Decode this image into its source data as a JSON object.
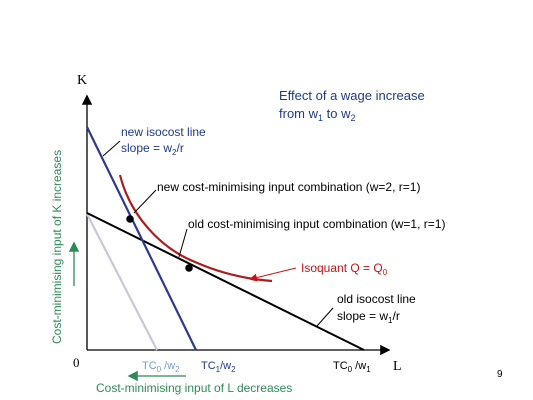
{
  "slide": {
    "title_line1": "Effect of a wage increase",
    "title_line2_prefix": "from w",
    "title_line2_sub1": "1",
    "title_line2_mid": " to w",
    "title_line2_sub2": "2",
    "page_number": "9"
  },
  "axes": {
    "y_label": "K",
    "x_label": "L",
    "origin_label": "0"
  },
  "labels": {
    "new_isocost_line1": "new isocost line",
    "new_isocost_line2_prefix": "slope = w",
    "new_isocost_line2_sub": "2",
    "new_isocost_line2_suffix": "/r",
    "new_combo": "new cost-minimising input combination (w=2, r=1)",
    "old_combo": "old cost-minimising input combination (w=1, r=1)",
    "isoquant_prefix": "Isoquant Q = Q",
    "isoquant_sub": "0",
    "old_isocost_line1": "old isocost line",
    "old_isocost_line2_prefix": "slope = w",
    "old_isocost_line2_sub": "1",
    "old_isocost_line2_suffix": "/r",
    "k_increase": "Cost-minimising input of K increases",
    "l_decrease": "Cost-minimising input of L decreases"
  },
  "intercepts": {
    "tc0_w2_prefix": "TC",
    "tc0_w2_sub": "0",
    "tc0_w2_suffix": " /w",
    "tc0_w2_sub2": "2",
    "tc1_w2_prefix": "TC",
    "tc1_w2_sub": "1",
    "tc1_w2_suffix": "/w",
    "tc1_w2_sub2": "2",
    "tc0_w1_prefix": "TC",
    "tc0_w1_sub": "0",
    "tc0_w1_suffix": " /w",
    "tc0_w1_sub2": "1"
  },
  "colors": {
    "title": "#1f3a8a",
    "label_blue": "#1f3a8a",
    "new_isocost": "#2e3a8c",
    "old_isocost": "#000000",
    "ghost_isocost": "#c8c8d8",
    "isoquant": "#b01c1c",
    "isoquant_label": "#cc1111",
    "green": "#2e8b57",
    "light_blue_text": "#7a9cc8"
  }
}
